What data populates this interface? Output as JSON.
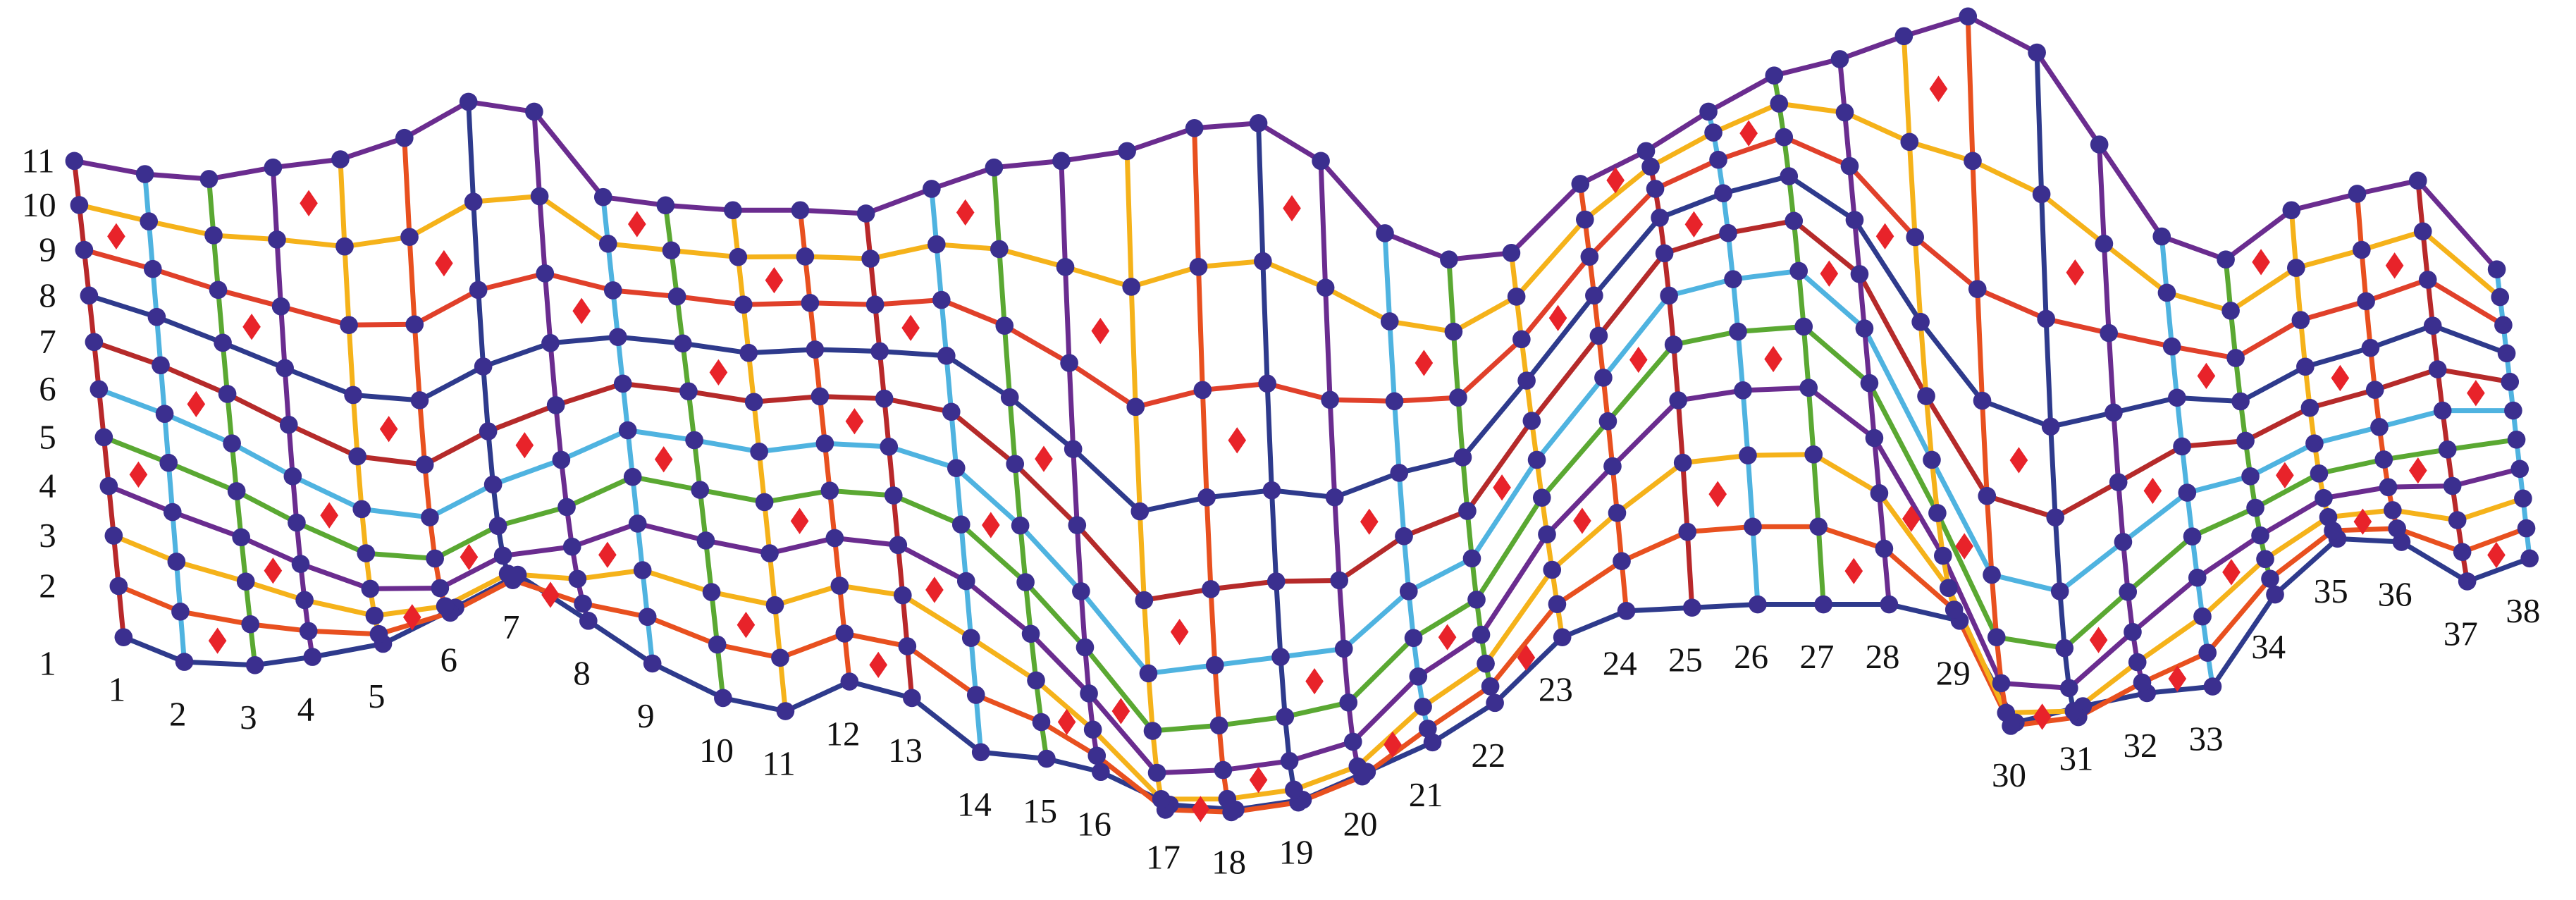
{
  "column_labels": [
    "1",
    "2",
    "3",
    "4",
    "5",
    "6",
    "7",
    "8",
    "9",
    "10",
    "11",
    "12",
    "13",
    "14",
    "15",
    "16",
    "17",
    "18",
    "19",
    "20",
    "21",
    "22",
    "23",
    "24",
    "25",
    "26",
    "27",
    "28",
    "29",
    "30",
    "31",
    "32",
    "33",
    "34",
    "35",
    "36",
    "37",
    "38"
  ],
  "row_labels": [
    "1",
    "2",
    "3",
    "4",
    "5",
    "6",
    "7",
    "8",
    "9",
    "10",
    "11"
  ]
}
